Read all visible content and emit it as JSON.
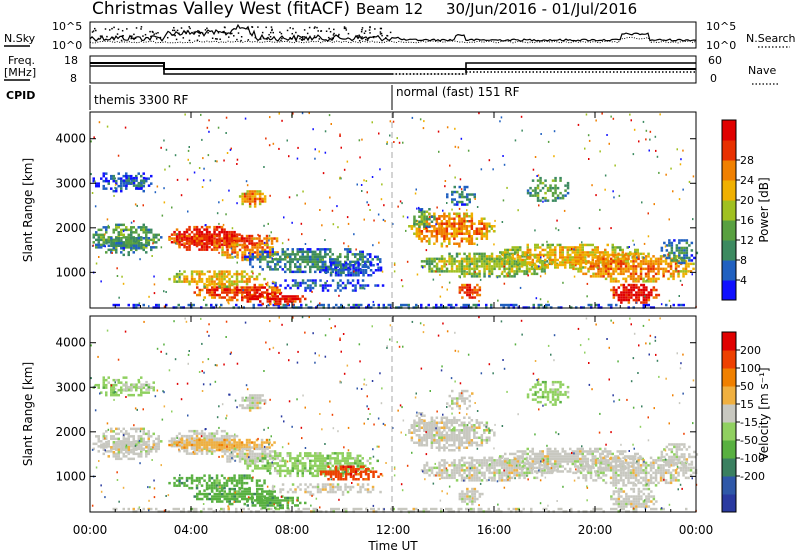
{
  "header": {
    "station": "Christmas Valley West (fitACF)",
    "beam": "Beam 12",
    "daterange": "30/Jun/2016 - 01/Jul/2016"
  },
  "labels": {
    "nsky": "N.Sky",
    "nsearch": "N.Search",
    "freq_line1": "Freq.",
    "freq_line2": "[MHz]",
    "nave": "Nave",
    "cpid": "CPID",
    "noise_top": "10^5",
    "noise_bottom": "10^0",
    "freq_top": "18",
    "freq_bottom": "8",
    "nave_top": "60",
    "nave_bottom": "0"
  },
  "cpid_segments": [
    {
      "label": "themis 3300 RF"
    },
    {
      "label": "normal (fast) 151 RF"
    }
  ],
  "chart_data": [
    {
      "type": "heatmap",
      "name": "power",
      "ylabel": "Slant Range [km]",
      "ylim": [
        200,
        4600
      ],
      "yticks": [
        "1000",
        "2000",
        "3000",
        "4000"
      ],
      "colorbar_label": "Power [dB]",
      "colorbar_ticks": [
        "4",
        "8",
        "12",
        "16",
        "20",
        "24",
        "28"
      ],
      "colorbar_colors": [
        "#1010ff",
        "#2060c0",
        "#3c8a60",
        "#58a040",
        "#a0c020",
        "#f0b000",
        "#f08000",
        "#e83000",
        "#e00000"
      ]
    },
    {
      "type": "heatmap",
      "name": "velocity",
      "ylabel": "Slant Range [km]",
      "ylim": [
        200,
        4600
      ],
      "yticks": [
        "1000",
        "2000",
        "3000",
        "4000"
      ],
      "colorbar_label": "Velocity [m s⁻¹]",
      "colorbar_ticks": [
        "200",
        "100",
        "50",
        "15",
        "-15",
        "-50",
        "-100",
        "-200"
      ],
      "colorbar_colors": [
        "#2a3aa0",
        "#2f58a8",
        "#3a8060",
        "#58b040",
        "#90d060",
        "#c8c8c0",
        "#f0b040",
        "#f08000",
        "#ee4000",
        "#e00000"
      ]
    }
  ],
  "xaxis": {
    "label": "Time UT",
    "ticks": [
      "00:00",
      "04:00",
      "08:00",
      "12:00",
      "16:00",
      "20:00",
      "00:00"
    ]
  }
}
